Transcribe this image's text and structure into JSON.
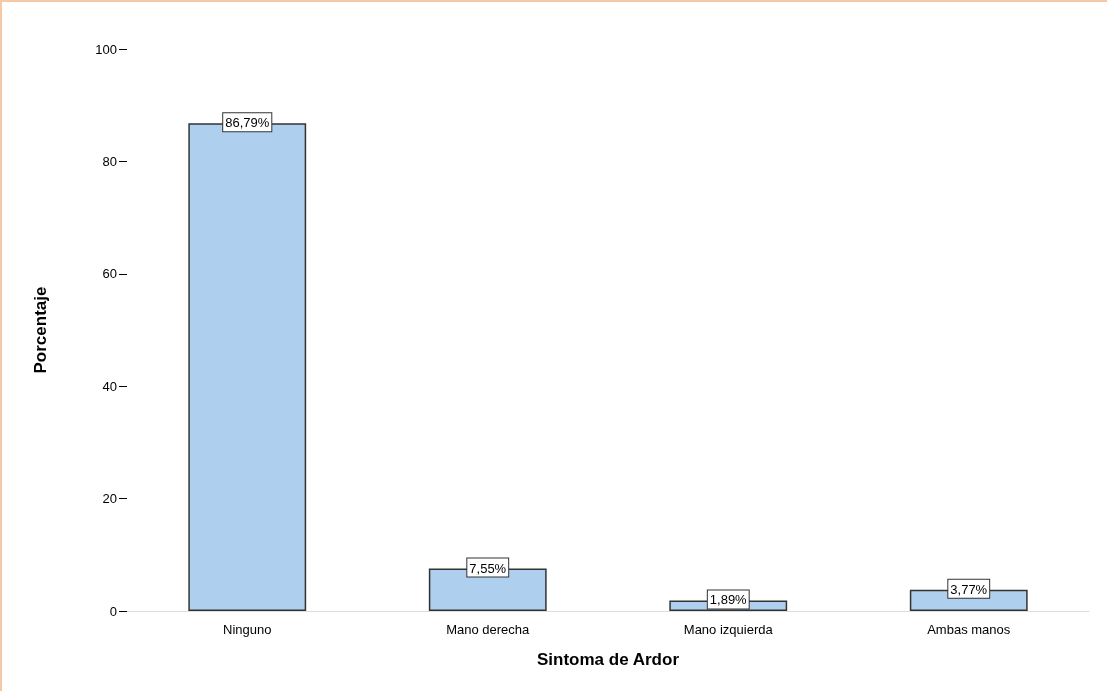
{
  "chart_data": {
    "type": "bar",
    "xlabel": "Sintoma de Ardor",
    "ylabel": "Porcentaje",
    "categories": [
      "Ninguno",
      "Mano derecha",
      "Mano izquierda",
      "Ambas manos"
    ],
    "values": [
      86.79,
      7.55,
      1.89,
      3.77
    ],
    "value_labels": [
      "86,79%",
      "7,55%",
      "1,89%",
      "3,77%"
    ],
    "color": "#aed0ee",
    "ylim": [
      0,
      100
    ],
    "yticks": [
      0,
      20,
      40,
      60,
      80,
      100
    ],
    "grid": false
  }
}
